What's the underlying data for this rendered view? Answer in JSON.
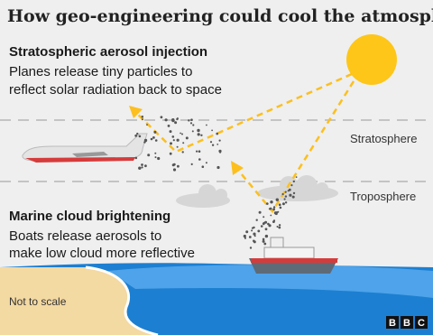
{
  "title": "How geo-engineering could cool the atmosphere",
  "sections": [
    {
      "heading": "Stratospheric aerosol injection",
      "lines": [
        "Planes release tiny particles to",
        "reflect solar radiation back to space"
      ]
    },
    {
      "heading": "Marine cloud brightening",
      "lines": [
        "Boats release aerosols to",
        "make low cloud more reflective"
      ]
    }
  ],
  "layers": [
    "Stratosphere",
    "Troposphere"
  ],
  "note": "Not to scale",
  "logo": [
    "B",
    "B",
    "C"
  ]
}
